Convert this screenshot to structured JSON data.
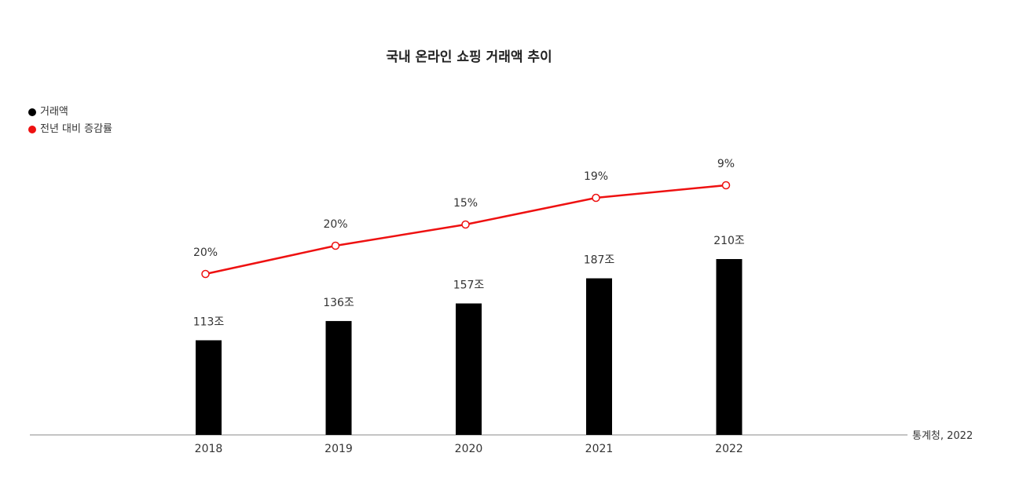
{
  "chart_data": {
    "type": "bar",
    "title": "국내 온라인 쇼핑 거래액 추이",
    "categories": [
      "2018",
      "2019",
      "2020",
      "2021",
      "2022"
    ],
    "series": [
      {
        "name": "거래액",
        "type": "bar",
        "color": "#000000",
        "values": [
          113,
          136,
          157,
          187,
          210
        ],
        "labels": [
          "113조",
          "136조",
          "157조",
          "187조",
          "210조"
        ]
      },
      {
        "name": "전년 대비 증감률",
        "type": "line",
        "color": "#ee1111",
        "values": [
          20,
          20,
          15,
          19,
          9
        ],
        "labels": [
          "20%",
          "20%",
          "15%",
          "19%",
          "9%"
        ]
      }
    ],
    "source": "통계청, 2022",
    "legend_position": "top-left",
    "grid": false
  }
}
